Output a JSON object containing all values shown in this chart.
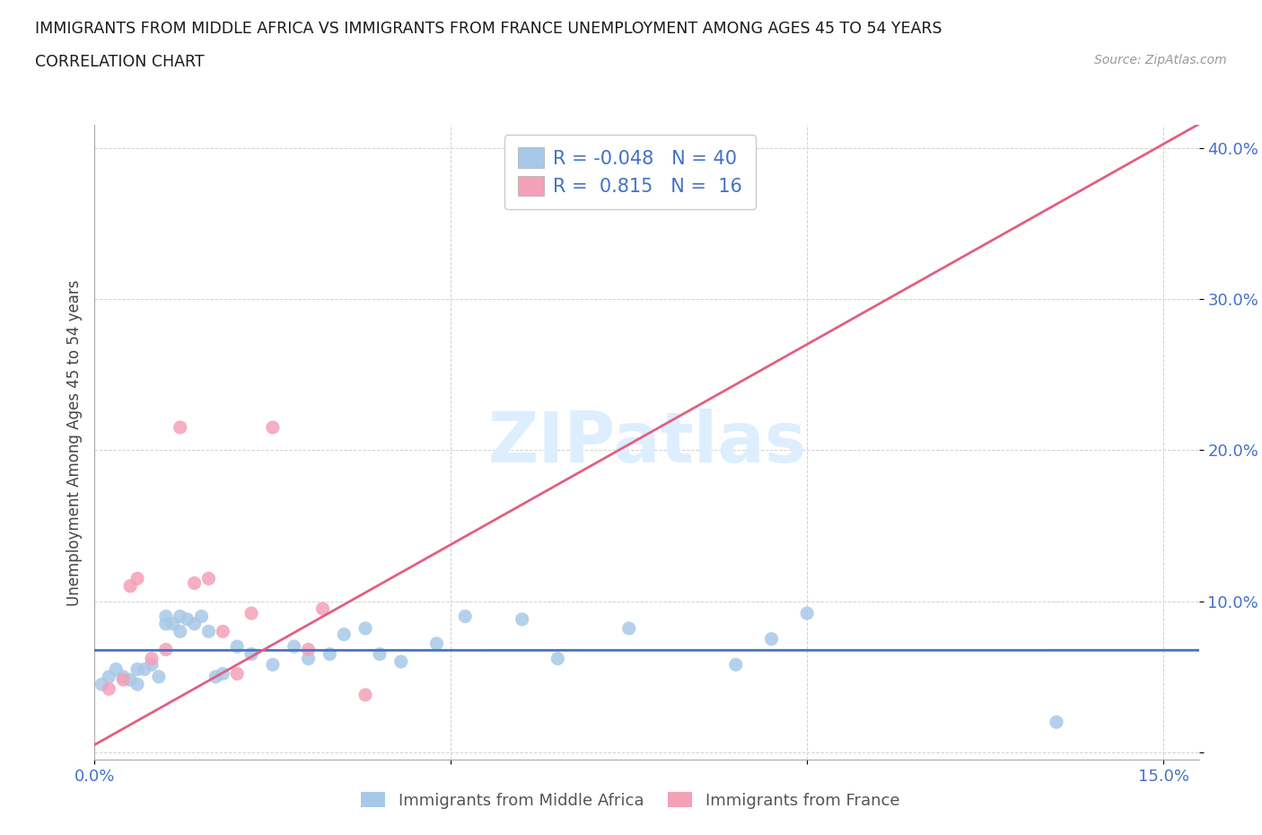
{
  "title_line1": "IMMIGRANTS FROM MIDDLE AFRICA VS IMMIGRANTS FROM FRANCE UNEMPLOYMENT AMONG AGES 45 TO 54 YEARS",
  "title_line2": "CORRELATION CHART",
  "source": "Source: ZipAtlas.com",
  "ylabel": "Unemployment Among Ages 45 to 54 years",
  "xlim": [
    0.0,
    0.155
  ],
  "ylim": [
    -0.005,
    0.415
  ],
  "xticks": [
    0.0,
    0.05,
    0.1,
    0.15
  ],
  "xtick_labels": [
    "0.0%",
    "",
    "",
    "15.0%"
  ],
  "yticks": [
    0.0,
    0.1,
    0.2,
    0.3,
    0.4
  ],
  "ytick_labels": [
    "",
    "10.0%",
    "20.0%",
    "30.0%",
    "40.0%"
  ],
  "blue_color": "#a8c8e8",
  "pink_color": "#f4a0b8",
  "blue_line_color": "#4472c4",
  "pink_line_color": "#e06080",
  "legend_r_blue": "-0.048",
  "legend_n_blue": "40",
  "legend_r_pink": "0.815",
  "legend_n_pink": "16",
  "watermark": "ZIPatlas",
  "watermark_color": "#ddeeff",
  "legend_text_color": "#4472c4",
  "bg_color": "#ffffff",
  "blue_scatter_x": [
    0.001,
    0.002,
    0.003,
    0.004,
    0.005,
    0.006,
    0.006,
    0.007,
    0.008,
    0.009,
    0.01,
    0.01,
    0.011,
    0.012,
    0.012,
    0.013,
    0.014,
    0.015,
    0.016,
    0.017,
    0.018,
    0.02,
    0.022,
    0.025,
    0.028,
    0.03,
    0.033,
    0.035,
    0.038,
    0.04,
    0.043,
    0.048,
    0.052,
    0.06,
    0.065,
    0.075,
    0.09,
    0.095,
    0.1,
    0.135
  ],
  "blue_scatter_y": [
    0.045,
    0.05,
    0.055,
    0.05,
    0.048,
    0.055,
    0.045,
    0.055,
    0.058,
    0.05,
    0.085,
    0.09,
    0.085,
    0.09,
    0.08,
    0.088,
    0.085,
    0.09,
    0.08,
    0.05,
    0.052,
    0.07,
    0.065,
    0.058,
    0.07,
    0.062,
    0.065,
    0.078,
    0.082,
    0.065,
    0.06,
    0.072,
    0.09,
    0.088,
    0.062,
    0.082,
    0.058,
    0.075,
    0.092,
    0.02
  ],
  "pink_scatter_x": [
    0.002,
    0.004,
    0.005,
    0.006,
    0.008,
    0.01,
    0.012,
    0.014,
    0.016,
    0.018,
    0.02,
    0.022,
    0.025,
    0.03,
    0.032,
    0.038
  ],
  "pink_scatter_y": [
    0.042,
    0.048,
    0.11,
    0.115,
    0.062,
    0.068,
    0.215,
    0.112,
    0.115,
    0.08,
    0.052,
    0.092,
    0.215,
    0.068,
    0.095,
    0.038
  ],
  "blue_line_slope": 0.048,
  "blue_line_intercept": 0.062,
  "pink_line_slope": 2.65,
  "pink_line_intercept": 0.005
}
